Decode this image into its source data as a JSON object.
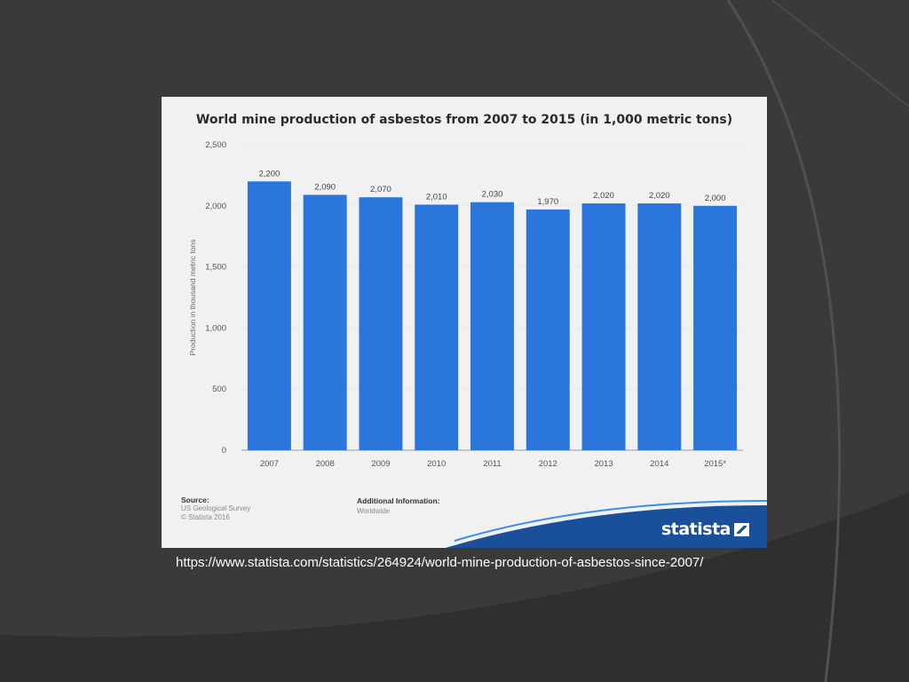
{
  "slide": {
    "caption": "https://www.statista.com/statistics/264924/world-mine-production-of-asbestos-since-2007/"
  },
  "chart_data": {
    "type": "bar",
    "title": "World mine production of asbestos from 2007 to 2015 (in 1,000 metric tons)",
    "xlabel": "",
    "ylabel": "Production in thousand metric tons",
    "categories": [
      "2007",
      "2008",
      "2009",
      "2010",
      "2011",
      "2012",
      "2013",
      "2014",
      "2015*"
    ],
    "values": [
      2200,
      2090,
      2070,
      2010,
      2030,
      1970,
      2020,
      2020,
      2000
    ],
    "value_labels": [
      "2,200",
      "2,090",
      "2,070",
      "2,010",
      "2,030",
      "1,970",
      "2,020",
      "2,020",
      "2,000"
    ],
    "ylim": [
      0,
      2500
    ],
    "yticks": [
      0,
      500,
      1000,
      1500,
      2000,
      2500
    ],
    "ytick_labels": [
      "0",
      "500",
      "1,000",
      "1,500",
      "2,000",
      "2,500"
    ],
    "grid": true,
    "bar_color": "#2a76dd"
  },
  "source": {
    "heading": "Source:",
    "lines": [
      "US Geological Survey",
      "© Statista 2016"
    ]
  },
  "additional_info": {
    "heading": "Additional Information:",
    "lines": [
      "Worldwide"
    ]
  },
  "brand": {
    "name": "statista",
    "icon": "statista-logo-icon"
  }
}
